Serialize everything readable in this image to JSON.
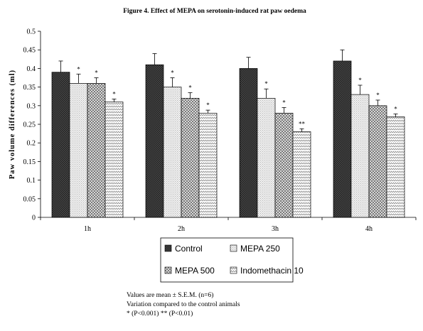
{
  "chart_data": {
    "type": "bar",
    "title": "Figure 4. Effect of MEPA on serotonin-induced rat paw oedema",
    "ylabel": "Paw volume differences (ml)",
    "xlabel": "",
    "ylim": [
      0,
      0.5
    ],
    "yticks": [
      "0",
      "0.05",
      "0.1",
      "0.15",
      "0.2",
      "0.25",
      "0.3",
      "0.35",
      "0.4",
      "0.45",
      "0.5"
    ],
    "categories": [
      "1h",
      "2h",
      "3h",
      "4h"
    ],
    "series": [
      {
        "name": "Control",
        "values": [
          0.39,
          0.41,
          0.4,
          0.42
        ],
        "errors": [
          0.03,
          0.03,
          0.03,
          0.03
        ],
        "marks": [
          "",
          "",
          "",
          ""
        ]
      },
      {
        "name": "MEPA 250",
        "values": [
          0.36,
          0.35,
          0.32,
          0.33
        ],
        "errors": [
          0.025,
          0.025,
          0.025,
          0.025
        ],
        "marks": [
          "*",
          "*",
          "*",
          "*"
        ]
      },
      {
        "name": "MEPA 500",
        "values": [
          0.36,
          0.32,
          0.28,
          0.3
        ],
        "errors": [
          0.015,
          0.015,
          0.015,
          0.015
        ],
        "marks": [
          "*",
          "*",
          "*",
          "*"
        ]
      },
      {
        "name": "Indomethacin 10",
        "values": [
          0.31,
          0.28,
          0.23,
          0.27
        ],
        "errors": [
          0.008,
          0.008,
          0.008,
          0.008
        ],
        "marks": [
          "*",
          "*",
          "**",
          "*"
        ]
      }
    ],
    "grid": false,
    "legend_position": "bottom"
  },
  "notes": {
    "line1": "Values are mean  ± S.E.M. (n=6)",
    "line2": "Variation compared to the control animals",
    "line3": "*  (P<0.001) ** (P<0.01)"
  }
}
